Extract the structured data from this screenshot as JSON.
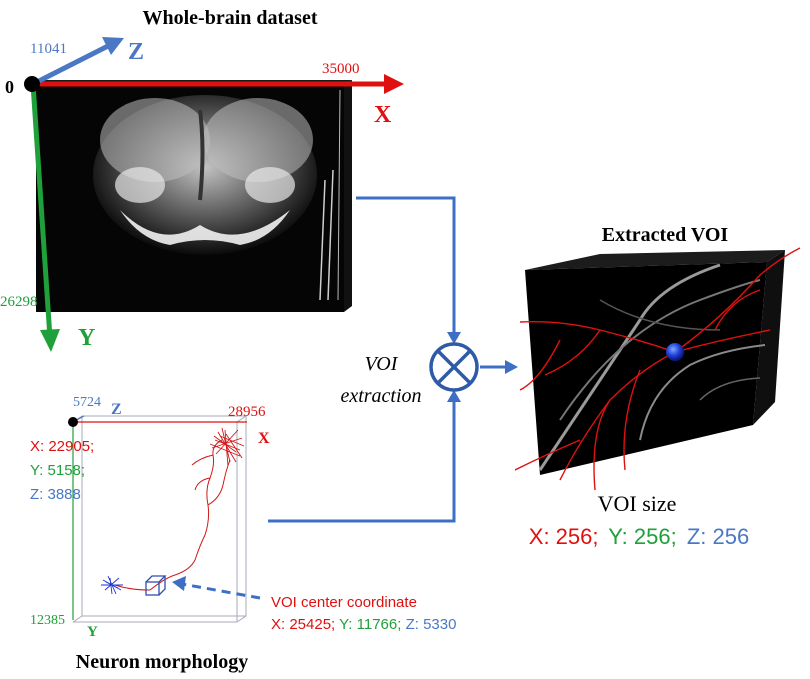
{
  "colors": {
    "red": "#e01010",
    "green": "#1fa03a",
    "blue": "#4a78c4",
    "connector": "#3d6fc4",
    "black": "#000000"
  },
  "whole_brain": {
    "title": "Whole-brain dataset",
    "origin": "0",
    "x_axis": {
      "letter": "X",
      "max": "35000"
    },
    "y_axis": {
      "letter": "Y",
      "max": "26298"
    },
    "z_axis": {
      "letter": "Z",
      "max": "11041"
    }
  },
  "operation": {
    "label_line1": "VOI",
    "label_line2": "extraction",
    "symbol": "⊗"
  },
  "neuron": {
    "title": "Neuron morphology",
    "x_axis": {
      "letter": "X",
      "max": "28956"
    },
    "y_axis": {
      "letter": "Y",
      "max": "12385"
    },
    "z_axis": {
      "letter": "Z",
      "max": "5724"
    },
    "offset": {
      "x": "X: 22905;",
      "y": "Y: 5158;",
      "z": "Z: 3888"
    },
    "voi_center": {
      "title": "VOI center coordinate",
      "x": "X:  25425;",
      "y": "Y: 11766;",
      "z": "Z: 5330"
    }
  },
  "extracted": {
    "title": "Extracted VOI",
    "size_label": "VOI size",
    "x": "X: 256;",
    "y": "Y: 256;",
    "z": "Z: 256"
  },
  "icons": [
    "brain-volume-image",
    "neuron-tracing-image",
    "voi-cube-image",
    "extraction-operator-icon"
  ]
}
